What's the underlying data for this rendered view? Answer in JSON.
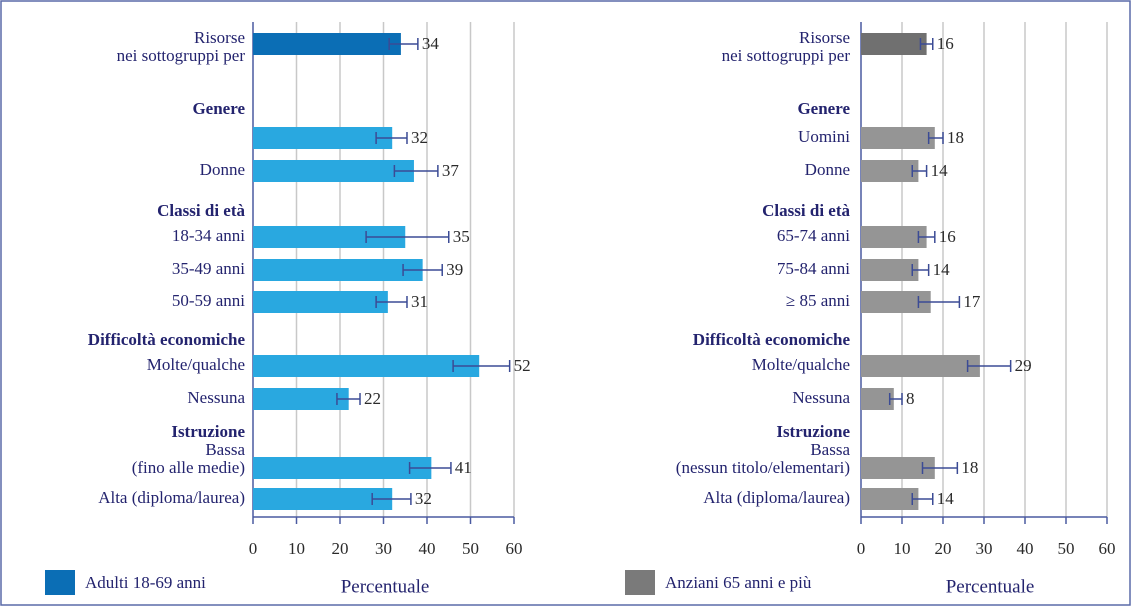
{
  "chart_data": [
    {
      "type": "bar",
      "legend": {
        "name": "Adulti 18-69 anni",
        "color": "#0b6eb5"
      },
      "xlabel": "Percentuale",
      "xlim": [
        0,
        60
      ],
      "xticks": [
        0,
        10,
        20,
        30,
        40,
        50,
        60
      ],
      "grid": true,
      "color": "#29a8e0",
      "overall": {
        "category": [
          "Risorse",
          "nei sottogruppi per"
        ],
        "value": 34,
        "ci": [
          31.3,
          37.9
        ],
        "color": "#0b6eb5"
      },
      "groups": [
        {
          "name": "Genere",
          "categories": [
            null,
            "Donne"
          ],
          "values": [
            32,
            37
          ],
          "ci": [
            [
              28.3,
              35.4
            ],
            [
              32.5,
              42.5
            ]
          ]
        },
        {
          "name": "Classi di età",
          "categories": [
            "18-34 anni",
            "35-49 anni",
            "50-59 anni"
          ],
          "values": [
            35,
            39,
            31
          ],
          "ci": [
            [
              26,
              45
            ],
            [
              34.5,
              43.5
            ],
            [
              28.3,
              35.4
            ]
          ]
        },
        {
          "name": "Difficoltà economiche",
          "categories": [
            "Molte/qualche",
            "Nessuna"
          ],
          "values": [
            52,
            22
          ],
          "ci": [
            [
              46,
              59
            ],
            [
              19.3,
              24.6
            ]
          ]
        },
        {
          "name": "Istruzione",
          "categories": [
            [
              "Bassa",
              "(fino alle medie)"
            ],
            "Alta (diploma/laurea)"
          ],
          "values": [
            41,
            32
          ],
          "ci": [
            [
              36,
              45.5
            ],
            [
              27.4,
              36.3
            ]
          ]
        }
      ]
    },
    {
      "type": "bar",
      "legend": {
        "name": "Anziani 65 anni e più",
        "color": "#7a7a7a"
      },
      "xlabel": "Percentuale",
      "xlim": [
        0,
        60
      ],
      "xticks": [
        0,
        10,
        20,
        30,
        40,
        50,
        60
      ],
      "grid": true,
      "color": "#959595",
      "overall": {
        "category": [
          "Risorse",
          "nei sottogruppi per"
        ],
        "value": 16,
        "ci": [
          14.5,
          17.5
        ],
        "color": "#707070"
      },
      "groups": [
        {
          "name": "Genere",
          "categories": [
            "Uomini",
            "Donne"
          ],
          "values": [
            18,
            14
          ],
          "ci": [
            [
              16.5,
              20
            ],
            [
              12.5,
              16
            ]
          ]
        },
        {
          "name": "Classi di età",
          "categories": [
            "65-74 anni",
            "75-84 anni",
            "≥ 85 anni"
          ],
          "values": [
            16,
            14,
            17
          ],
          "ci": [
            [
              14,
              18
            ],
            [
              12.5,
              16.5
            ],
            [
              14,
              24
            ]
          ]
        },
        {
          "name": "Difficoltà economiche",
          "categories": [
            "Molte/qualche",
            "Nessuna"
          ],
          "values": [
            29,
            8
          ],
          "ci": [
            [
              26,
              36.5
            ],
            [
              7,
              10
            ]
          ]
        },
        {
          "name": "Istruzione",
          "categories": [
            [
              "Bassa",
              "(nessun titolo/elementari)"
            ],
            "Alta (diploma/laurea)"
          ],
          "values": [
            18,
            14
          ],
          "ci": [
            [
              15,
              23.5
            ],
            [
              12.5,
              17.5
            ]
          ]
        }
      ]
    }
  ]
}
